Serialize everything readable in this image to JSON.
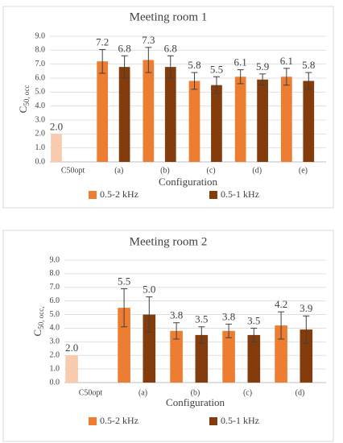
{
  "chart_data": [
    {
      "type": "bar",
      "title": "Meeting room 1",
      "x_label": "Configuration",
      "y_label": "C",
      "y_label_sub": "50, occ",
      "categories": [
        "C50opt",
        "(a)",
        "(b)",
        "(c)",
        "(d)",
        "(e)"
      ],
      "series": [
        {
          "name": "0.5-2 kHz",
          "color": "#ed7d31",
          "colors": [
            "#f8cbad",
            "#ed7d31",
            "#ed7d31",
            "#ed7d31",
            "#ed7d31",
            "#ed7d31"
          ],
          "values": [
            2.0,
            7.2,
            7.3,
            5.8,
            6.1,
            6.1
          ],
          "value_labels": [
            "2.0",
            "7.2",
            "7.3",
            "5.8",
            "6.1",
            "6.1"
          ],
          "errors": [
            null,
            0.85,
            0.9,
            0.6,
            0.5,
            0.6
          ]
        },
        {
          "name": "0.5-1 kHz",
          "color": "#843c0c",
          "values": [
            null,
            6.8,
            6.8,
            5.5,
            5.9,
            5.8
          ],
          "value_labels": [
            null,
            "6.8",
            "6.8",
            "5.5",
            "5.9",
            "5.8"
          ],
          "errors": [
            null,
            0.8,
            0.8,
            0.6,
            0.4,
            0.6
          ]
        }
      ],
      "ylim": [
        0,
        9
      ],
      "yticks": [
        {
          "value": 0,
          "label": "0.0"
        },
        {
          "value": 1,
          "label": "1.0"
        },
        {
          "value": 2,
          "label": "2.0"
        },
        {
          "value": 3,
          "label": "3.0"
        },
        {
          "value": 4,
          "label": "4.0"
        },
        {
          "value": 5,
          "label": "5.0"
        },
        {
          "value": 6,
          "label": "6.0"
        },
        {
          "value": 7,
          "label": "7.0"
        },
        {
          "value": 8,
          "label": "8.0"
        },
        {
          "value": 9,
          "label": "9.0"
        }
      ],
      "grid": true
    },
    {
      "type": "bar",
      "title": "Meeting room 2",
      "x_label": "Configuration",
      "y_label": "C",
      "y_label_sub": "50, occ,",
      "categories": [
        "C50opt",
        "(a)",
        "(b)",
        "(c)",
        "(d)"
      ],
      "series": [
        {
          "name": "0.5-2 kHz",
          "color": "#ed7d31",
          "colors": [
            "#f8cbad",
            "#ed7d31",
            "#ed7d31",
            "#ed7d31",
            "#ed7d31"
          ],
          "values": [
            2.0,
            5.5,
            3.8,
            3.8,
            4.2
          ],
          "value_labels": [
            "2.0",
            "5.5",
            "3.8",
            "3.8",
            "4.2"
          ],
          "errors": [
            null,
            1.4,
            0.6,
            0.5,
            1.0
          ]
        },
        {
          "name": "0.5-1 kHz",
          "color": "#843c0c",
          "values": [
            null,
            5.0,
            3.5,
            3.5,
            3.9
          ],
          "value_labels": [
            null,
            "5.0",
            "3.5",
            "3.5",
            "3.9"
          ],
          "errors": [
            null,
            1.3,
            0.6,
            0.5,
            1.0
          ]
        }
      ],
      "ylim": [
        0,
        9
      ],
      "yticks": [
        {
          "value": 0,
          "label": "0.0"
        },
        {
          "value": 1,
          "label": "1.0"
        },
        {
          "value": 2,
          "label": "2.0"
        },
        {
          "value": 3,
          "label": "3.0"
        },
        {
          "value": 4,
          "label": "4.0"
        },
        {
          "value": 5,
          "label": "5.0"
        },
        {
          "value": 6,
          "label": "6.0"
        },
        {
          "value": 7,
          "label": "7.0"
        },
        {
          "value": 8,
          "label": "8.0"
        },
        {
          "value": 9,
          "label": "9.0"
        }
      ],
      "grid": true
    }
  ]
}
